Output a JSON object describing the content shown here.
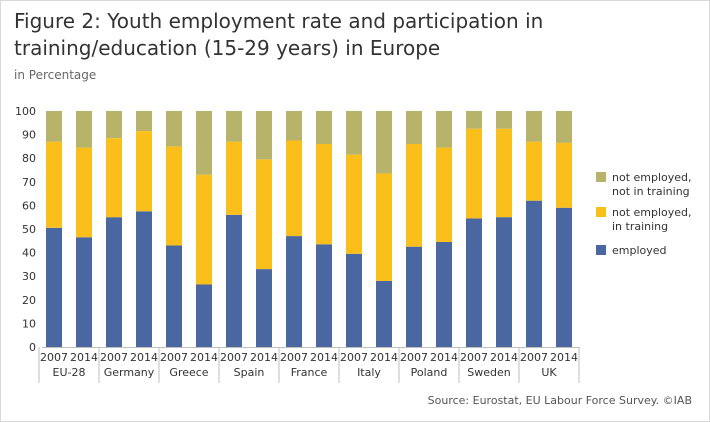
{
  "header": {
    "title": "Figure 2: Youth employment rate and participation in training/education (15-29 years) in Europe",
    "subtitle": "in Percentage"
  },
  "footer": {
    "source": "Source: Eurostat, EU Labour Force Survey. ©IAB"
  },
  "colors": {
    "employed": "#4a67a1",
    "not_employed_in_training": "#fbbf1b",
    "not_employed_not_in_training": "#b7b36a",
    "axis": "#bfbfbf"
  },
  "chart_data": {
    "type": "bar",
    "stacked": true,
    "ylim": [
      0,
      100
    ],
    "yticks": [
      0,
      10,
      20,
      30,
      40,
      50,
      60,
      70,
      80,
      90,
      100
    ],
    "grid": false,
    "legend_position": "right",
    "groups": [
      {
        "label": "EU-28",
        "years": [
          "2007",
          "2014"
        ]
      },
      {
        "label": "Germany",
        "years": [
          "2007",
          "2014"
        ]
      },
      {
        "label": "Greece",
        "years": [
          "2007",
          "2014"
        ]
      },
      {
        "label": "Spain",
        "years": [
          "2007",
          "2014"
        ]
      },
      {
        "label": "France",
        "years": [
          "2007",
          "2014"
        ]
      },
      {
        "label": "Italy",
        "years": [
          "2007",
          "2014"
        ]
      },
      {
        "label": "Poland",
        "years": [
          "2007",
          "2014"
        ]
      },
      {
        "label": "Sweden",
        "years": [
          "2007",
          "2014"
        ]
      },
      {
        "label": "UK",
        "years": [
          "2007",
          "2014"
        ]
      }
    ],
    "categories": [
      "EU-28 2007",
      "EU-28 2014",
      "Germany 2007",
      "Germany 2014",
      "Greece 2007",
      "Greece 2014",
      "Spain 2007",
      "Spain 2014",
      "France 2007",
      "France 2014",
      "Italy 2007",
      "Italy 2014",
      "Poland 2007",
      "Poland 2014",
      "Sweden 2007",
      "Sweden 2014",
      "UK 2007",
      "UK 2014"
    ],
    "series": [
      {
        "name": "employed",
        "key": "employed",
        "values": [
          50.5,
          46.5,
          55,
          57.5,
          43,
          26.5,
          56,
          33,
          47,
          43.5,
          39.5,
          28,
          42.5,
          44.5,
          54.5,
          55,
          62,
          59
        ]
      },
      {
        "name": "not employed, in training",
        "key": "not_employed_in_training",
        "values": [
          36.5,
          38,
          33.5,
          34,
          42,
          46.5,
          31,
          46.5,
          40.5,
          42.5,
          42,
          45.5,
          43.5,
          40,
          38,
          37.5,
          25,
          27.5
        ]
      },
      {
        "name": "not employed, not in training",
        "key": "not_employed_not_in_training",
        "values": [
          13,
          15.5,
          11.5,
          8.5,
          15,
          27,
          13,
          20.5,
          12.5,
          14,
          18.5,
          26.5,
          14,
          15.5,
          7.5,
          7.5,
          13,
          13.5
        ]
      }
    ],
    "legend": [
      {
        "key": "not_employed_not_in_training",
        "line1": "not employed,",
        "line2": "not in training"
      },
      {
        "key": "not_employed_in_training",
        "line1": "not employed,",
        "line2": "in training"
      },
      {
        "key": "employed",
        "line1": "employed",
        "line2": ""
      }
    ]
  }
}
